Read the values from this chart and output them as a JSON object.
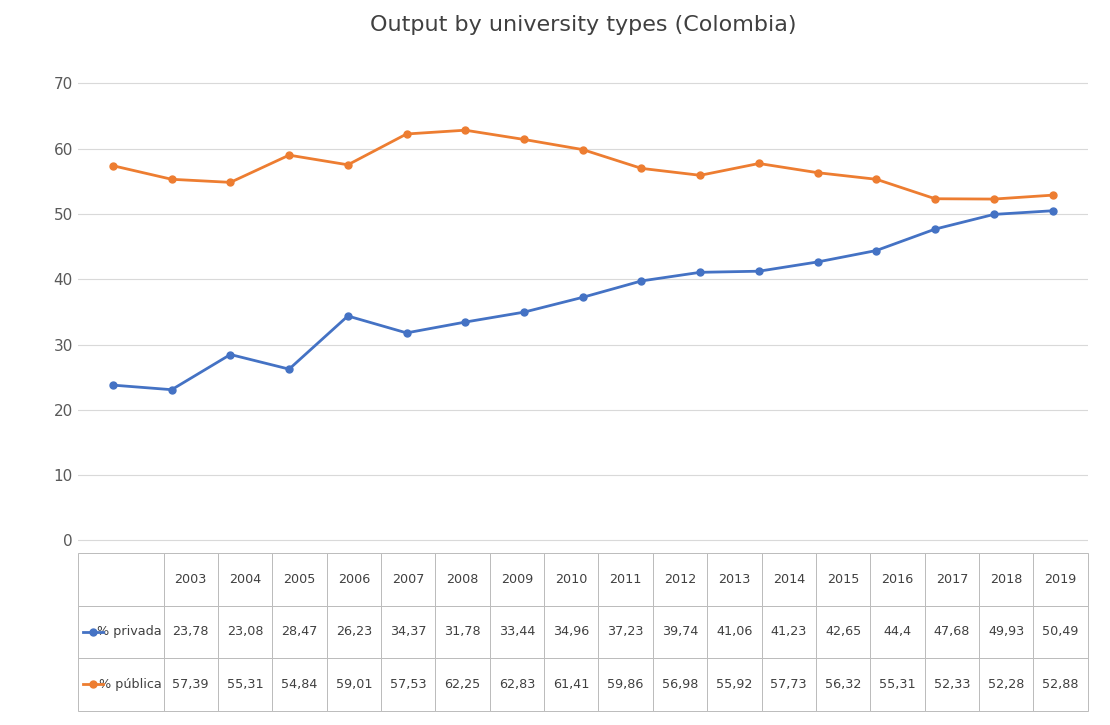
{
  "title": "Output by university types (Colombia)",
  "years": [
    2003,
    2004,
    2005,
    2006,
    2007,
    2008,
    2009,
    2010,
    2011,
    2012,
    2013,
    2014,
    2015,
    2016,
    2017,
    2018,
    2019
  ],
  "privada": [
    23.78,
    23.08,
    28.47,
    26.23,
    34.37,
    31.78,
    33.44,
    34.96,
    37.23,
    39.74,
    41.06,
    41.23,
    42.65,
    44.4,
    47.68,
    49.93,
    50.49
  ],
  "publica": [
    57.39,
    55.31,
    54.84,
    59.01,
    57.53,
    62.25,
    62.83,
    61.41,
    59.86,
    56.98,
    55.92,
    57.73,
    56.32,
    55.31,
    52.33,
    52.28,
    52.88
  ],
  "privada_color": "#4472C4",
  "publica_color": "#ED7D31",
  "privada_label": "% privada",
  "publica_label": "% pública",
  "yticks": [
    0,
    10,
    20,
    30,
    40,
    50,
    60,
    70
  ],
  "ylim": [
    -2,
    75
  ],
  "background_color": "#FFFFFF",
  "grid_color": "#D9D9D9",
  "table_values_privada": [
    "23,78",
    "23,08",
    "28,47",
    "26,23",
    "34,37",
    "31,78",
    "33,44",
    "34,96",
    "37,23",
    "39,74",
    "41,06",
    "41,23",
    "42,65",
    "44,4",
    "47,68",
    "49,93",
    "50,49"
  ],
  "table_values_publica": [
    "57,39",
    "55,31",
    "54,84",
    "59,01",
    "57,53",
    "62,25",
    "62,83",
    "61,41",
    "59,86",
    "56,98",
    "55,92",
    "57,73",
    "56,32",
    "55,31",
    "52,33",
    "52,28",
    "52,88"
  ]
}
